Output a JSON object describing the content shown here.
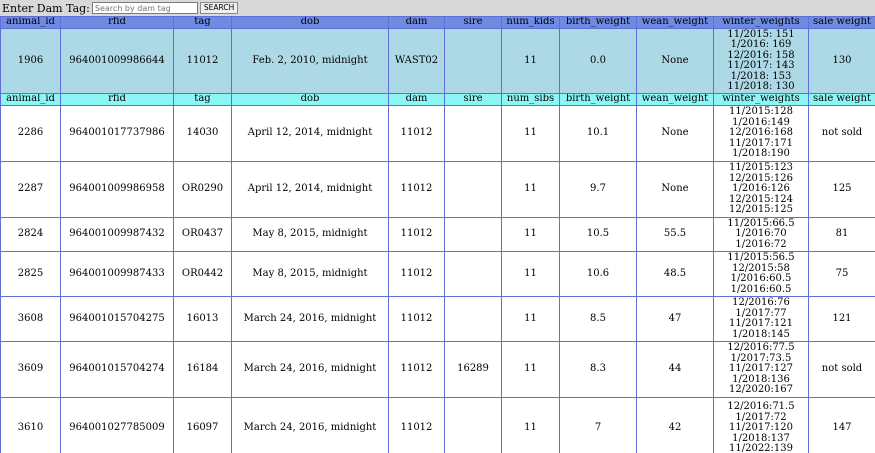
{
  "search": {
    "label": "Enter Dam Tag:",
    "placeholder": "Search by dam tag",
    "button_label": "SEARCH"
  },
  "dam_headers": [
    "animal_id",
    "rfid",
    "tag",
    "dob",
    "dam",
    "sire",
    "num_kids",
    "birth_weight",
    "wean_weight",
    "winter_weights",
    "sale weight"
  ],
  "dam": {
    "animal_id": "1906",
    "rfid": "964001009986644",
    "tag": "11012",
    "dob": "Feb. 2, 2010, midnight",
    "dam": "WAST02",
    "sire": "",
    "num": "11",
    "birth_weight": "0.0",
    "wean_weight": "None",
    "winter_weights": [
      "11/2015: 151",
      "1/2016: 169",
      "12/2016: 158",
      "11/2017: 143",
      "1/2018: 153",
      "11/2018: 130"
    ],
    "sale_weight": "130"
  },
  "kid_headers": [
    "animal_id",
    "rfid",
    "tag",
    "dob",
    "dam",
    "sire",
    "num_sibs",
    "birth_weight",
    "wean_weight",
    "winter_weights",
    "sale weight"
  ],
  "kids": [
    {
      "animal_id": "2286",
      "rfid": "964001017737986",
      "tag": "14030",
      "dob": "April 12, 2014, midnight",
      "dam": "11012",
      "sire": "",
      "num": "11",
      "birth_weight": "10.1",
      "wean_weight": "None",
      "winter_weights": [
        "11/2015:128",
        "1/2016:149",
        "12/2016:168",
        "11/2017:171",
        "1/2018:190"
      ],
      "sale_weight": "not sold"
    },
    {
      "animal_id": "2287",
      "rfid": "964001009986958",
      "tag": "OR0290",
      "dob": "April 12, 2014, midnight",
      "dam": "11012",
      "sire": "",
      "num": "11",
      "birth_weight": "9.7",
      "wean_weight": "None",
      "winter_weights": [
        "11/2015:123",
        "12/2015:126",
        "1/2016:126",
        "12/2015:124",
        "12/2015:125"
      ],
      "sale_weight": "125"
    },
    {
      "animal_id": "2824",
      "rfid": "964001009987432",
      "tag": "OR0437",
      "dob": "May 8, 2015, midnight",
      "dam": "11012",
      "sire": "",
      "num": "11",
      "birth_weight": "10.5",
      "wean_weight": "55.5",
      "winter_weights": [
        "11/2015:66.5",
        "1/2016:70",
        "1/2016:72"
      ],
      "sale_weight": "81"
    },
    {
      "animal_id": "2825",
      "rfid": "964001009987433",
      "tag": "OR0442",
      "dob": "May 8, 2015, midnight",
      "dam": "11012",
      "sire": "",
      "num": "11",
      "birth_weight": "10.6",
      "wean_weight": "48.5",
      "winter_weights": [
        "11/2015:56.5",
        "12/2015:58",
        "1/2016:60.5",
        "1/2016:60.5"
      ],
      "sale_weight": "75"
    },
    {
      "animal_id": "3608",
      "rfid": "964001015704275",
      "tag": "16013",
      "dob": "March 24, 2016, midnight",
      "dam": "11012",
      "sire": "",
      "num": "11",
      "birth_weight": "8.5",
      "wean_weight": "47",
      "winter_weights": [
        "12/2016:76",
        "1/2017:77",
        "11/2017:121",
        "1/2018:145"
      ],
      "sale_weight": "121"
    },
    {
      "animal_id": "3609",
      "rfid": "964001015704274",
      "tag": "16184",
      "dob": "March 24, 2016, midnight",
      "dam": "11012",
      "sire": "16289",
      "num": "11",
      "birth_weight": "8.3",
      "wean_weight": "44",
      "winter_weights": [
        "12/2016:77.5",
        "1/2017:73.5",
        "11/2017:127",
        "1/2018:136",
        "12/2020:167"
      ],
      "sale_weight": "not sold"
    },
    {
      "animal_id": "3610",
      "rfid": "964001027785009",
      "tag": "16097",
      "dob": "March 24, 2016, midnight",
      "dam": "11012",
      "sire": "",
      "num": "11",
      "birth_weight": "7",
      "wean_weight": "42",
      "winter_weights": [
        "12/2016:71.5",
        "1/2017:72",
        "11/2017:120",
        "1/2018:137",
        "11/2022:139"
      ],
      "sale_weight": "147"
    }
  ]
}
